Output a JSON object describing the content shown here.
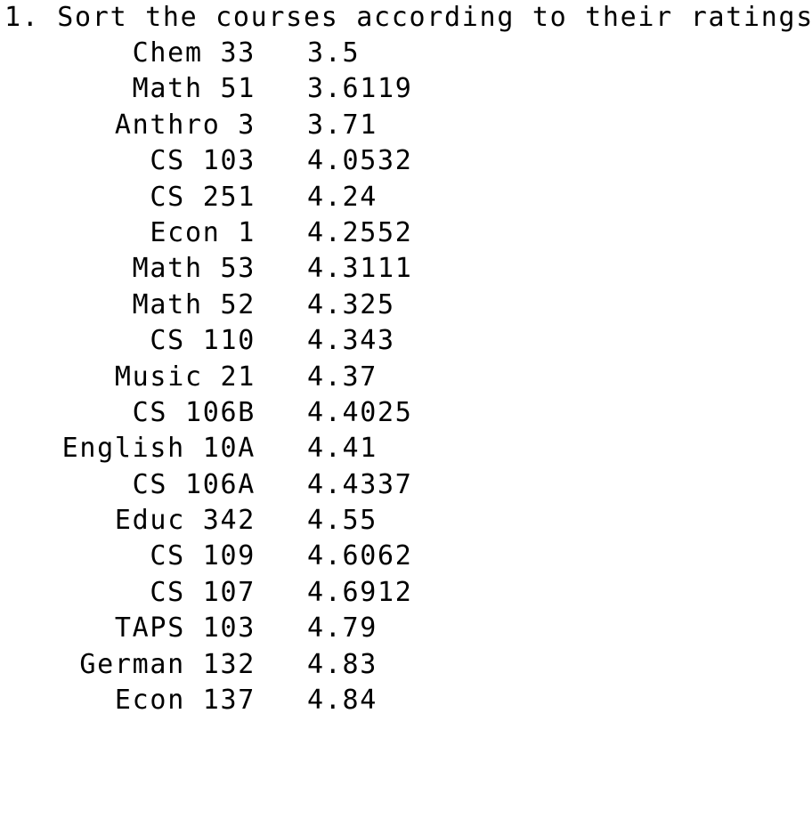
{
  "heading": "1. Sort the courses according to their ratings.",
  "rows": [
    {
      "course": "Chem 33",
      "rating": "3.5"
    },
    {
      "course": "Math 51",
      "rating": "3.6119"
    },
    {
      "course": "Anthro 3",
      "rating": "3.71"
    },
    {
      "course": "CS 103",
      "rating": "4.0532"
    },
    {
      "course": "CS 251",
      "rating": "4.24"
    },
    {
      "course": "Econ 1",
      "rating": "4.2552"
    },
    {
      "course": "Math 53",
      "rating": "4.3111"
    },
    {
      "course": "Math 52",
      "rating": "4.325"
    },
    {
      "course": "CS 110",
      "rating": "4.343"
    },
    {
      "course": "Music 21",
      "rating": "4.37"
    },
    {
      "course": "CS 106B",
      "rating": "4.4025"
    },
    {
      "course": "English 10A",
      "rating": "4.41"
    },
    {
      "course": "CS 106A",
      "rating": "4.4337"
    },
    {
      "course": "Educ 342",
      "rating": "4.55"
    },
    {
      "course": "CS 109",
      "rating": "4.6062"
    },
    {
      "course": "CS 107",
      "rating": "4.6912"
    },
    {
      "course": "TAPS 103",
      "rating": "4.79"
    },
    {
      "course": "German 132",
      "rating": "4.83"
    },
    {
      "course": "Econ 137",
      "rating": "4.84"
    }
  ]
}
